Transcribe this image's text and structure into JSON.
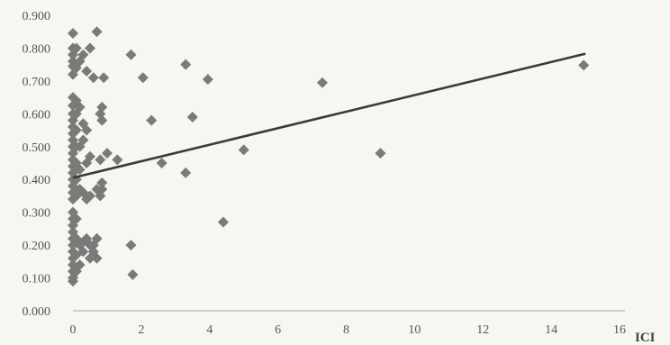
{
  "chart_data": {
    "type": "scatter",
    "title": "",
    "xlabel": "ICI",
    "ylabel": "",
    "xlim": [
      0,
      16
    ],
    "ylim": [
      0,
      0.9
    ],
    "x_ticks": [
      0,
      2,
      4,
      6,
      8,
      10,
      12,
      14,
      16
    ],
    "y_ticks": [
      0,
      0.1,
      0.2,
      0.3,
      0.4,
      0.5,
      0.6,
      0.7,
      0.8,
      0.9
    ],
    "x_tick_labels": [
      "0",
      "2",
      "4",
      "6",
      "8",
      "10",
      "12",
      "14",
      "16"
    ],
    "y_tick_labels": [
      "0.000",
      "0.100",
      "0.200",
      "0.300",
      "0.400",
      "0.500",
      "0.600",
      "0.700",
      "0.800",
      "0.900"
    ],
    "grid": false,
    "legend": "none",
    "colors": {
      "points": "#7a7a7a",
      "trendline": "#3a3a3a",
      "axis": "#a8a8a8"
    },
    "trendline": {
      "x": [
        0,
        15
      ],
      "y": [
        0.405,
        0.783
      ]
    },
    "points": [
      {
        "x": 0.0,
        "y": 0.845
      },
      {
        "x": 0.0,
        "y": 0.8
      },
      {
        "x": 0.0,
        "y": 0.78
      },
      {
        "x": 0.0,
        "y": 0.76
      },
      {
        "x": 0.0,
        "y": 0.745
      },
      {
        "x": 0.0,
        "y": 0.72
      },
      {
        "x": 0.0,
        "y": 0.65
      },
      {
        "x": 0.0,
        "y": 0.625
      },
      {
        "x": 0.0,
        "y": 0.6
      },
      {
        "x": 0.0,
        "y": 0.58
      },
      {
        "x": 0.0,
        "y": 0.56
      },
      {
        "x": 0.0,
        "y": 0.54
      },
      {
        "x": 0.0,
        "y": 0.52
      },
      {
        "x": 0.0,
        "y": 0.5
      },
      {
        "x": 0.0,
        "y": 0.48
      },
      {
        "x": 0.0,
        "y": 0.46
      },
      {
        "x": 0.0,
        "y": 0.44
      },
      {
        "x": 0.0,
        "y": 0.42
      },
      {
        "x": 0.0,
        "y": 0.4
      },
      {
        "x": 0.0,
        "y": 0.38
      },
      {
        "x": 0.0,
        "y": 0.36
      },
      {
        "x": 0.0,
        "y": 0.34
      },
      {
        "x": 0.0,
        "y": 0.3
      },
      {
        "x": 0.0,
        "y": 0.28
      },
      {
        "x": 0.0,
        "y": 0.26
      },
      {
        "x": 0.0,
        "y": 0.24
      },
      {
        "x": 0.0,
        "y": 0.22
      },
      {
        "x": 0.0,
        "y": 0.2
      },
      {
        "x": 0.0,
        "y": 0.18
      },
      {
        "x": 0.0,
        "y": 0.16
      },
      {
        "x": 0.0,
        "y": 0.14
      },
      {
        "x": 0.0,
        "y": 0.12
      },
      {
        "x": 0.0,
        "y": 0.1
      },
      {
        "x": 0.0,
        "y": 0.09
      },
      {
        "x": 0.1,
        "y": 0.8
      },
      {
        "x": 0.1,
        "y": 0.74
      },
      {
        "x": 0.1,
        "y": 0.64
      },
      {
        "x": 0.1,
        "y": 0.6
      },
      {
        "x": 0.1,
        "y": 0.55
      },
      {
        "x": 0.1,
        "y": 0.5
      },
      {
        "x": 0.1,
        "y": 0.45
      },
      {
        "x": 0.1,
        "y": 0.4
      },
      {
        "x": 0.1,
        "y": 0.35
      },
      {
        "x": 0.1,
        "y": 0.28
      },
      {
        "x": 0.1,
        "y": 0.22
      },
      {
        "x": 0.1,
        "y": 0.17
      },
      {
        "x": 0.1,
        "y": 0.12
      },
      {
        "x": 0.2,
        "y": 0.76
      },
      {
        "x": 0.2,
        "y": 0.62
      },
      {
        "x": 0.2,
        "y": 0.5
      },
      {
        "x": 0.2,
        "y": 0.43
      },
      {
        "x": 0.2,
        "y": 0.37
      },
      {
        "x": 0.2,
        "y": 0.2
      },
      {
        "x": 0.2,
        "y": 0.14
      },
      {
        "x": 0.3,
        "y": 0.78
      },
      {
        "x": 0.3,
        "y": 0.57
      },
      {
        "x": 0.3,
        "y": 0.52
      },
      {
        "x": 0.3,
        "y": 0.36
      },
      {
        "x": 0.3,
        "y": 0.21
      },
      {
        "x": 0.3,
        "y": 0.18
      },
      {
        "x": 0.4,
        "y": 0.73
      },
      {
        "x": 0.4,
        "y": 0.55
      },
      {
        "x": 0.4,
        "y": 0.45
      },
      {
        "x": 0.4,
        "y": 0.34
      },
      {
        "x": 0.4,
        "y": 0.22
      },
      {
        "x": 0.5,
        "y": 0.8
      },
      {
        "x": 0.5,
        "y": 0.47
      },
      {
        "x": 0.5,
        "y": 0.35
      },
      {
        "x": 0.5,
        "y": 0.2
      },
      {
        "x": 0.5,
        "y": 0.16
      },
      {
        "x": 0.6,
        "y": 0.71
      },
      {
        "x": 0.6,
        "y": 0.2
      },
      {
        "x": 0.6,
        "y": 0.18
      },
      {
        "x": 0.7,
        "y": 0.85
      },
      {
        "x": 0.7,
        "y": 0.37
      },
      {
        "x": 0.7,
        "y": 0.22
      },
      {
        "x": 0.7,
        "y": 0.16
      },
      {
        "x": 0.8,
        "y": 0.6
      },
      {
        "x": 0.8,
        "y": 0.46
      },
      {
        "x": 0.8,
        "y": 0.35
      },
      {
        "x": 0.85,
        "y": 0.62
      },
      {
        "x": 0.85,
        "y": 0.58
      },
      {
        "x": 0.85,
        "y": 0.39
      },
      {
        "x": 0.85,
        "y": 0.37
      },
      {
        "x": 0.9,
        "y": 0.71
      },
      {
        "x": 1.0,
        "y": 0.48
      },
      {
        "x": 1.3,
        "y": 0.46
      },
      {
        "x": 1.7,
        "y": 0.78
      },
      {
        "x": 1.7,
        "y": 0.2
      },
      {
        "x": 1.75,
        "y": 0.11
      },
      {
        "x": 2.05,
        "y": 0.71
      },
      {
        "x": 2.3,
        "y": 0.58
      },
      {
        "x": 2.6,
        "y": 0.45
      },
      {
        "x": 3.3,
        "y": 0.75
      },
      {
        "x": 3.3,
        "y": 0.42
      },
      {
        "x": 3.5,
        "y": 0.59
      },
      {
        "x": 3.95,
        "y": 0.705
      },
      {
        "x": 4.4,
        "y": 0.27
      },
      {
        "x": 5.0,
        "y": 0.49
      },
      {
        "x": 7.3,
        "y": 0.695
      },
      {
        "x": 9.0,
        "y": 0.48
      },
      {
        "x": 14.95,
        "y": 0.748
      }
    ]
  }
}
